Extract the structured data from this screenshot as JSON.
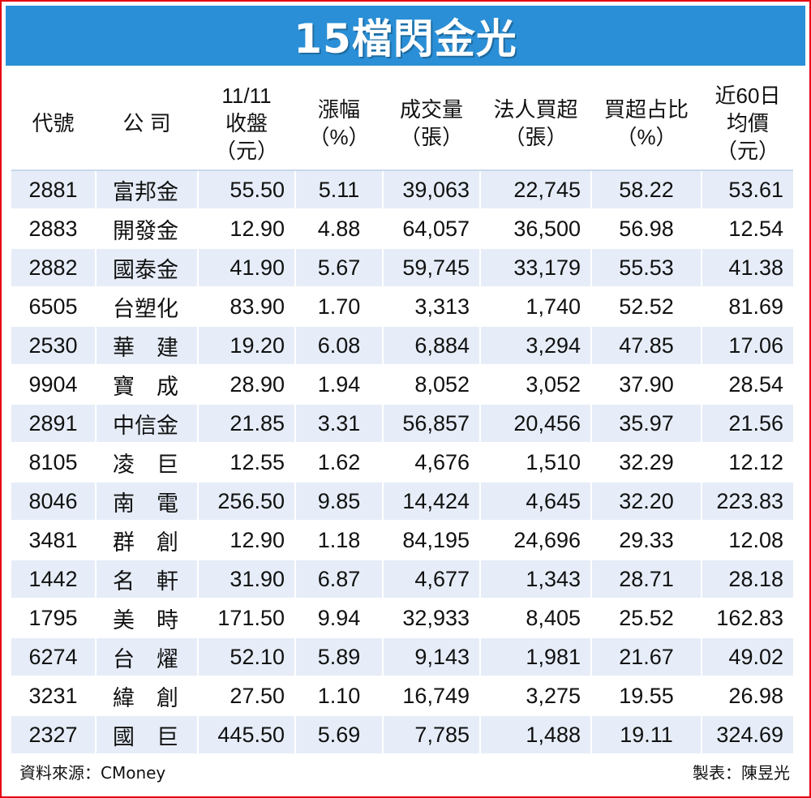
{
  "title": "15檔閃金光",
  "colors": {
    "title_bg": "#2a8fd6",
    "border": "#e60012",
    "row_stripe": "#e6edf8"
  },
  "table": {
    "headers": [
      "代號",
      "公 司",
      "11/11\n收盤\n（元）",
      "漲幅\n（%）",
      "成交量\n（張）",
      "法人買超\n（張）",
      "買超占比\n（%）",
      "近60日\n均價\n（元）"
    ],
    "rows": [
      [
        "2881",
        "富邦金",
        "55.50",
        "5.11",
        "39,063",
        "22,745",
        "58.22",
        "53.61"
      ],
      [
        "2883",
        "開發金",
        "12.90",
        "4.88",
        "64,057",
        "36,500",
        "56.98",
        "12.54"
      ],
      [
        "2882",
        "國泰金",
        "41.90",
        "5.67",
        "59,745",
        "33,179",
        "55.53",
        "41.38"
      ],
      [
        "6505",
        "台塑化",
        "83.90",
        "1.70",
        "3,313",
        "1,740",
        "52.52",
        "81.69"
      ],
      [
        "2530",
        "華　建",
        "19.20",
        "6.08",
        "6,884",
        "3,294",
        "47.85",
        "17.06"
      ],
      [
        "9904",
        "寶　成",
        "28.90",
        "1.94",
        "8,052",
        "3,052",
        "37.90",
        "28.54"
      ],
      [
        "2891",
        "中信金",
        "21.85",
        "3.31",
        "56,857",
        "20,456",
        "35.97",
        "21.56"
      ],
      [
        "8105",
        "凌　巨",
        "12.55",
        "1.62",
        "4,676",
        "1,510",
        "32.29",
        "12.12"
      ],
      [
        "8046",
        "南　電",
        "256.50",
        "9.85",
        "14,424",
        "4,645",
        "32.20",
        "223.83"
      ],
      [
        "3481",
        "群　創",
        "12.90",
        "1.18",
        "84,195",
        "24,696",
        "29.33",
        "12.08"
      ],
      [
        "1442",
        "名　軒",
        "31.90",
        "6.87",
        "4,677",
        "1,343",
        "28.71",
        "28.18"
      ],
      [
        "1795",
        "美　時",
        "171.50",
        "9.94",
        "32,933",
        "8,405",
        "25.52",
        "162.83"
      ],
      [
        "6274",
        "台　燿",
        "52.10",
        "5.89",
        "9,143",
        "1,981",
        "21.67",
        "49.02"
      ],
      [
        "3231",
        "緯　創",
        "27.50",
        "1.10",
        "16,749",
        "3,275",
        "19.55",
        "26.98"
      ],
      [
        "2327",
        "國　巨",
        "445.50",
        "5.69",
        "7,785",
        "1,488",
        "19.11",
        "324.69"
      ]
    ]
  },
  "footer": {
    "source": "資料來源：CMoney",
    "author": "製表：陳昱光"
  }
}
